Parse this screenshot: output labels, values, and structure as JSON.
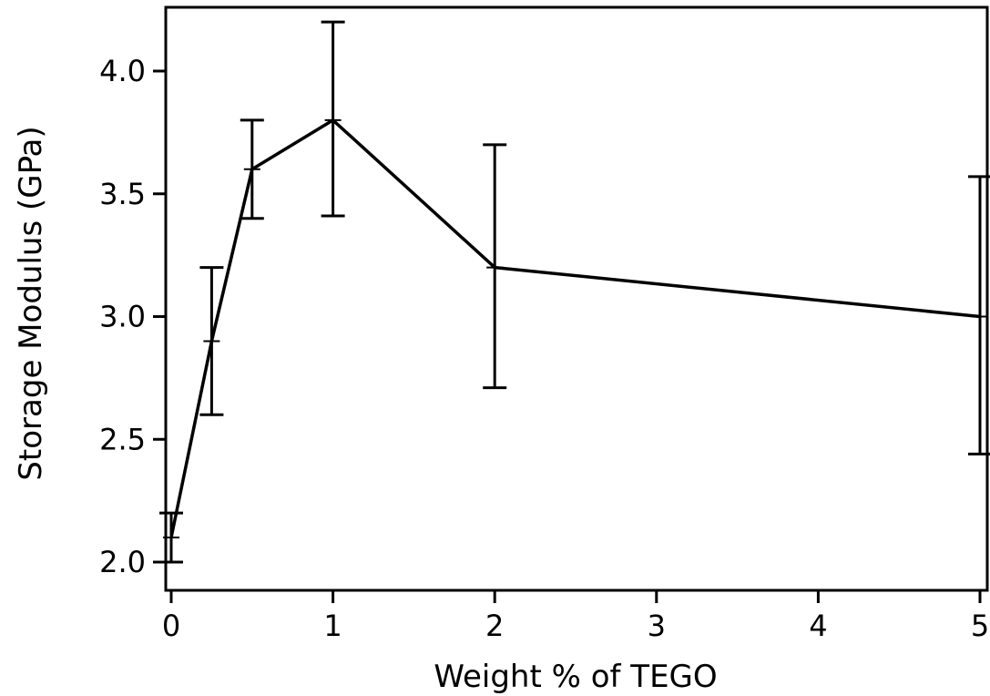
{
  "chart_data": {
    "type": "line",
    "title": "",
    "xlabel": "Weight % of TEGO",
    "ylabel": "Storage Modulus (GPa)",
    "xlim": [
      0,
      5
    ],
    "ylim": [
      2.0,
      4.2
    ],
    "x_ticks": [
      0,
      1,
      2,
      3,
      4,
      5
    ],
    "x_tick_labels": [
      "0",
      "1",
      "2",
      "3",
      "4",
      "5"
    ],
    "y_ticks": [
      2.0,
      2.5,
      3.0,
      3.5,
      4.0
    ],
    "y_tick_labels": [
      "2.0",
      "2.5",
      "3.0",
      "3.5",
      "4.0"
    ],
    "grid": false,
    "legend": false,
    "series": [
      {
        "x": [
          0,
          0.25,
          0.5,
          1,
          2,
          5
        ],
        "y": [
          2.1,
          2.9,
          3.6,
          3.8,
          3.2,
          3.0
        ],
        "error_low": [
          2.0,
          2.6,
          3.4,
          3.41,
          2.71,
          2.44
        ],
        "error_high": [
          2.2,
          3.2,
          3.8,
          4.2,
          3.7,
          3.57
        ]
      }
    ],
    "colors": {
      "line": "#000000",
      "axis": "#000000",
      "background": "#ffffff"
    }
  }
}
